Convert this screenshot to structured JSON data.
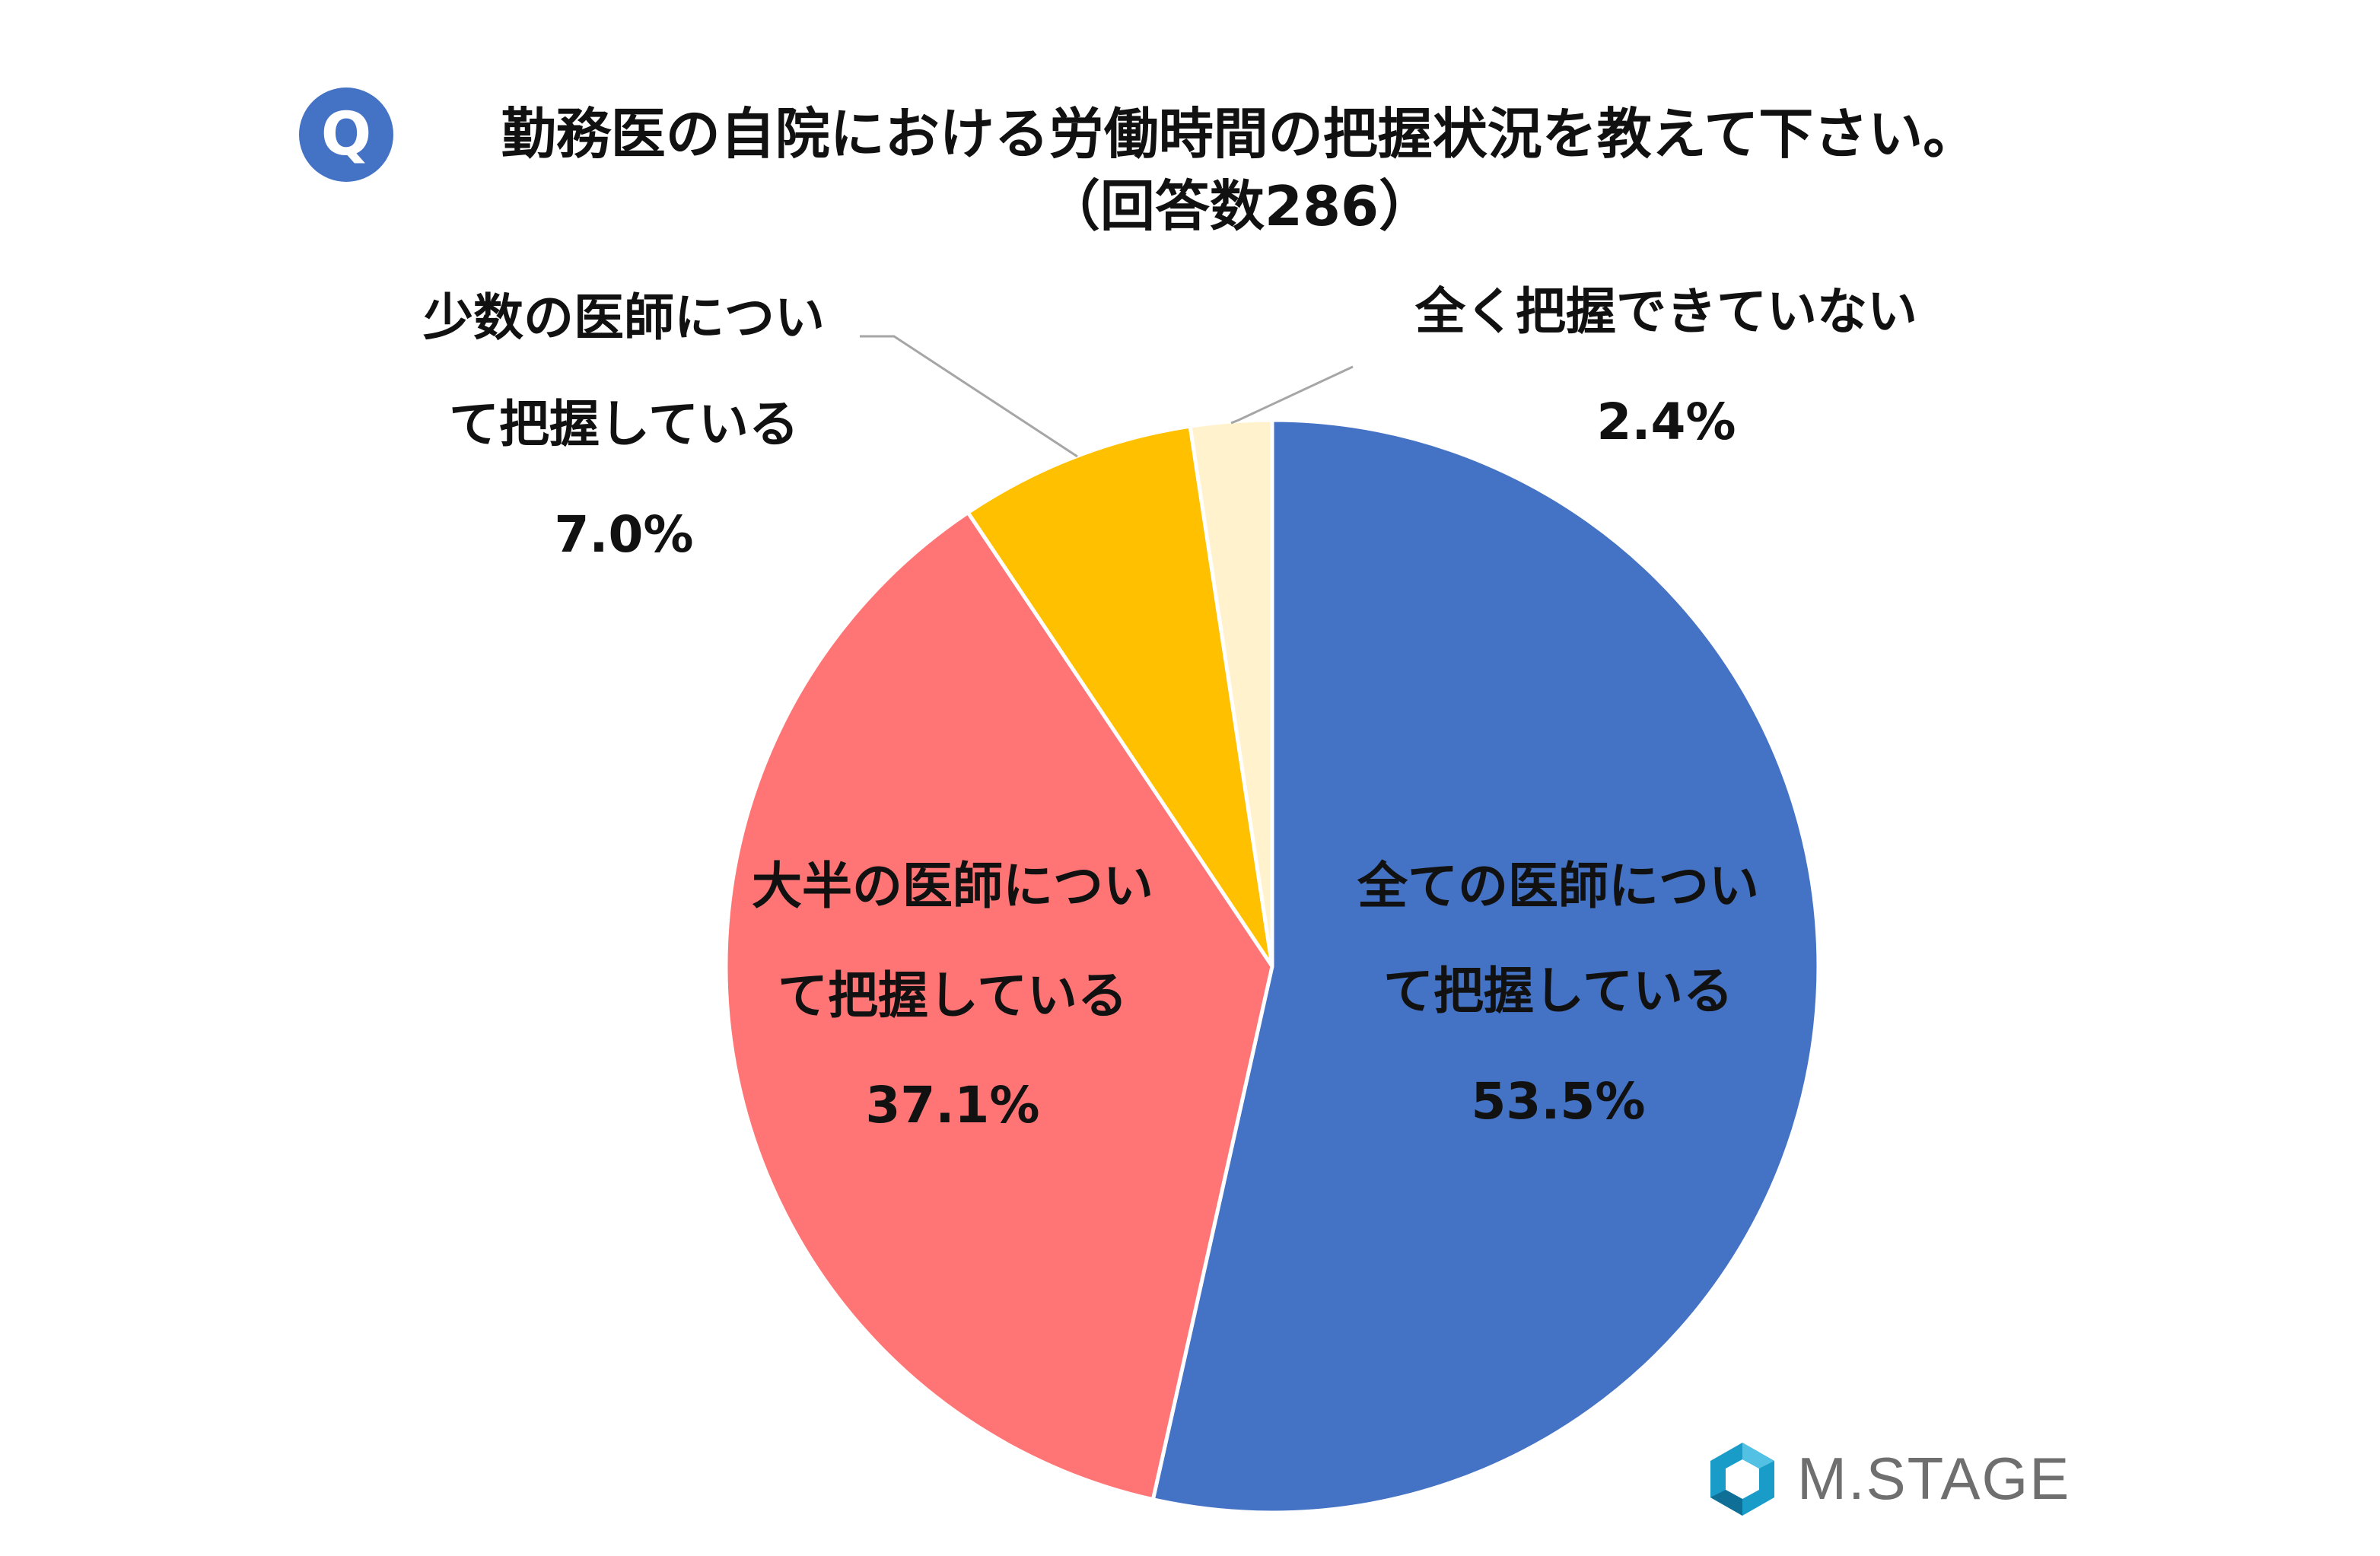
{
  "header": {
    "badge": "Q",
    "title": "勤務医の自院における労働時間の把握状況を教えて下さい。",
    "subtitle": "（回答数286）"
  },
  "chart_data": {
    "type": "pie",
    "title": "勤務医の自院における労働時間の把握状況を教えて下さい。",
    "subtitle": "（回答数286）",
    "start_angle_deg": 0,
    "direction": "clockwise",
    "slices": [
      {
        "label_lines": [
          "全ての医師につい",
          "て把握している"
        ],
        "value": 53.5,
        "value_text": "53.5%",
        "color": "#4472c4"
      },
      {
        "label_lines": [
          "大半の医師につい",
          "て把握している"
        ],
        "value": 37.1,
        "value_text": "37.1%",
        "color": "#ff7575"
      },
      {
        "label_lines": [
          "少数の医師につい",
          "て把握している"
        ],
        "value": 7.0,
        "value_text": "7.0%",
        "color": "#ffc000"
      },
      {
        "label_lines": [
          "全く把握できていない"
        ],
        "value": 2.4,
        "value_text": "2.4%",
        "color": "#fff2cc"
      }
    ],
    "legend": "none"
  },
  "logo": {
    "text": "M.STAGE",
    "color": "#1a9cc9"
  }
}
